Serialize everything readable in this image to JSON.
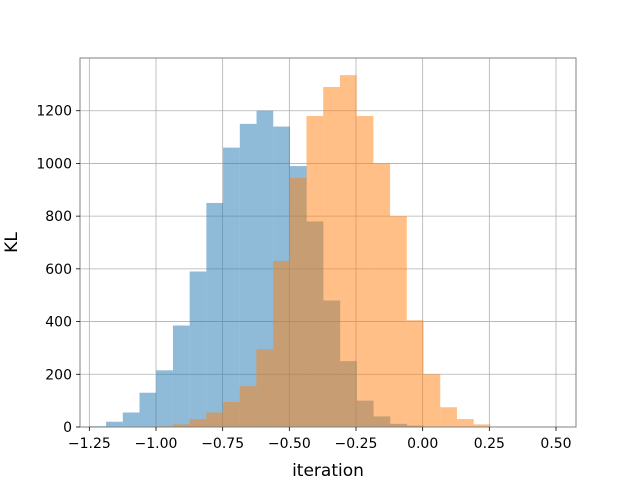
{
  "chart_data": {
    "type": "bar",
    "subtype": "overlapping-histogram",
    "title": "",
    "xlabel": "iteration",
    "ylabel": "KL",
    "xlim": [
      -1.285,
      0.575
    ],
    "ylim": [
      0,
      1400
    ],
    "grid": true,
    "xticks": [
      -1.25,
      -1.0,
      -0.75,
      -0.5,
      -0.25,
      0.0,
      0.25,
      0.5
    ],
    "xtick_labels": [
      "−1.25",
      "−1.00",
      "−0.75",
      "−0.50",
      "−0.25",
      "0.00",
      "0.25",
      "0.50"
    ],
    "yticks": [
      0,
      200,
      400,
      600,
      800,
      1000,
      1200
    ],
    "ytick_labels": [
      "0",
      "200",
      "400",
      "600",
      "800",
      "1000",
      "1200"
    ],
    "bin_width": 0.0627,
    "series": [
      {
        "color": "#1f77b4",
        "opacity": 0.5,
        "bin_start": -1.25,
        "values": [
          3,
          20,
          55,
          130,
          215,
          385,
          590,
          850,
          1060,
          1150,
          1200,
          1140,
          990,
          780,
          480,
          250,
          100,
          40,
          12,
          5
        ]
      },
      {
        "color": "#ff7f0e",
        "opacity": 0.5,
        "bin_start": -1.0,
        "values": [
          3,
          10,
          30,
          55,
          95,
          155,
          295,
          630,
          945,
          1180,
          1290,
          1335,
          1180,
          1000,
          800,
          405,
          200,
          75,
          30,
          10
        ]
      }
    ]
  }
}
